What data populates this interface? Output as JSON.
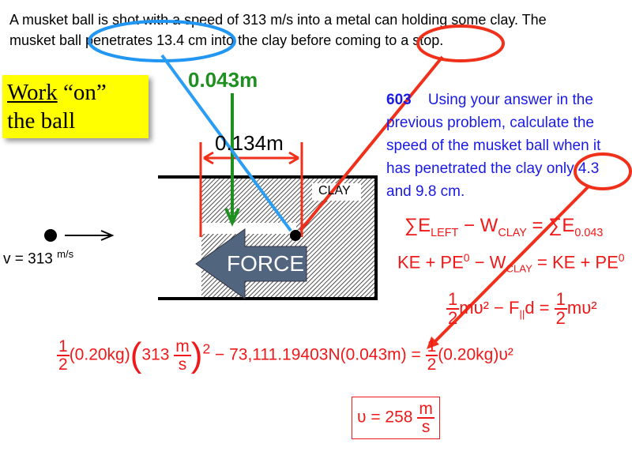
{
  "problem": {
    "line1": "A musket ball is shot with a speed of 313 m/s into a metal can holding some clay.  The",
    "line2": "musket ball penetrates 13.4 cm into the clay before coming to a stop."
  },
  "label_box": {
    "word1": "Work",
    "word2": " “on”",
    "line2": "the ball",
    "color": "#ffff00"
  },
  "diagram": {
    "d_green": "0.043m",
    "d_red": "0.134m",
    "clay": "CLAY",
    "force": "FORCE",
    "velocity": "v = 313",
    "velocity_unit": "m/s"
  },
  "question": {
    "number": "603",
    "text1": "Using your answer in the",
    "text2": "previous problem, calculate the",
    "text3": "speed of the musket ball when it",
    "text4": "has penetrated the clay only 4.3",
    "text5": "and 9.8 cm.",
    "color": "#1a1ae6"
  },
  "equations": {
    "e1a": "∑E",
    "e1b": "LEFT",
    "e1c": " − W",
    "e1d": "CLAY",
    "e1e": " = ∑E",
    "e1f": "0.043",
    "e2a": "KE + PE",
    "e2b": "0",
    "e2c": " − W",
    "e2d": "CLAY",
    "e2e": " = KE + PE",
    "e2f": "0",
    "e3one": "1",
    "e3two": "2",
    "e3a": "mυ² − F",
    "e3b": "||",
    "e3c": "d = ",
    "e3d": "mυ²",
    "e4a": "(0.20kg)",
    "e4b": "313",
    "e4m": "m",
    "e4s": "s",
    "e4c": "− 73,111.19403N(0.043m) = ",
    "e4d": "(0.20kg)υ²",
    "e4sq": "2",
    "ans": "υ = 258",
    "ans_m": "m",
    "ans_s": "s"
  }
}
